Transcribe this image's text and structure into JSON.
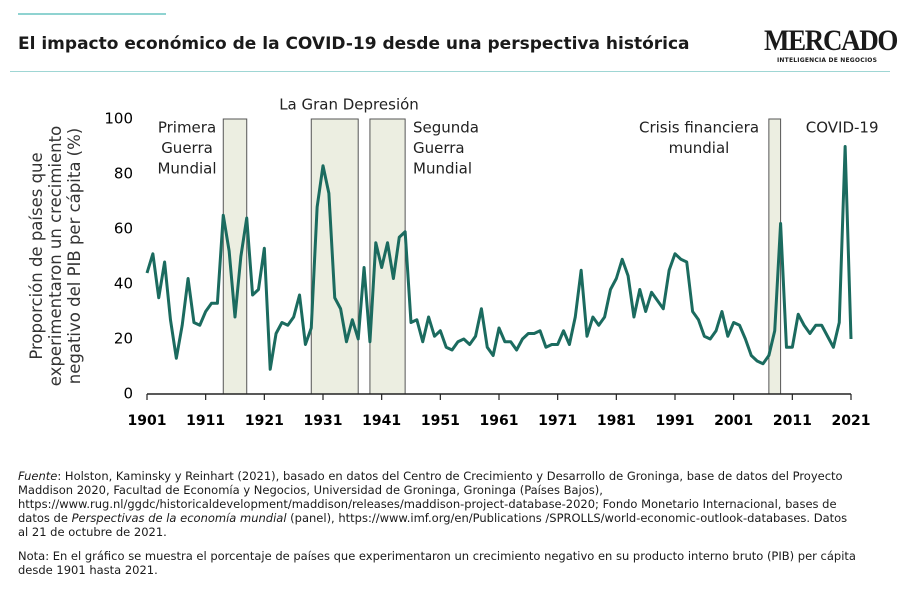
{
  "header": {
    "title": "El impacto económico de la COVID-19 desde una perspectiva histórica",
    "logo": "MERCADO",
    "logo_sub": "INTELIGENCIA DE NEGOCIOS"
  },
  "chart_data": {
    "type": "line",
    "ylabel": [
      "Proporción de países que",
      "experimentaron un crecimiento",
      "negativo del PIB per cápita (%)"
    ],
    "x": [
      1901,
      1902,
      1903,
      1904,
      1905,
      1906,
      1907,
      1908,
      1909,
      1910,
      1911,
      1912,
      1913,
      1914,
      1915,
      1916,
      1917,
      1918,
      1919,
      1920,
      1921,
      1922,
      1923,
      1924,
      1925,
      1926,
      1927,
      1928,
      1929,
      1930,
      1931,
      1932,
      1933,
      1934,
      1935,
      1936,
      1937,
      1938,
      1939,
      1940,
      1941,
      1942,
      1943,
      1944,
      1945,
      1946,
      1947,
      1948,
      1949,
      1950,
      1951,
      1952,
      1953,
      1954,
      1955,
      1956,
      1957,
      1958,
      1959,
      1960,
      1961,
      1962,
      1963,
      1964,
      1965,
      1966,
      1967,
      1968,
      1969,
      1970,
      1971,
      1972,
      1973,
      1974,
      1975,
      1976,
      1977,
      1978,
      1979,
      1980,
      1981,
      1982,
      1983,
      1984,
      1985,
      1986,
      1987,
      1988,
      1989,
      1990,
      1991,
      1992,
      1993,
      1994,
      1995,
      1996,
      1997,
      1998,
      1999,
      2000,
      2001,
      2002,
      2003,
      2004,
      2005,
      2006,
      2007,
      2008,
      2009,
      2010,
      2011,
      2012,
      2013,
      2014,
      2015,
      2016,
      2017,
      2018,
      2019,
      2020,
      2021
    ],
    "series": [
      {
        "color": "#1b6b5f",
        "values": [
          44,
          51,
          35,
          48,
          27,
          13,
          25,
          42,
          26,
          25,
          30,
          33,
          33,
          65,
          52,
          28,
          50,
          64,
          36,
          38,
          53,
          9,
          22,
          26,
          25,
          28,
          36,
          18,
          24,
          68,
          83,
          73,
          35,
          31,
          19,
          27,
          20,
          46,
          19,
          55,
          46,
          55,
          42,
          57,
          59,
          26,
          27,
          19,
          28,
          21,
          23,
          17,
          16,
          19,
          20,
          18,
          21,
          31,
          17,
          14,
          24,
          19,
          19,
          16,
          20,
          22,
          22,
          23,
          17,
          18,
          18,
          23,
          18,
          28,
          45,
          21,
          28,
          25,
          28,
          38,
          42,
          49,
          43,
          28,
          38,
          30,
          37,
          34,
          31,
          45,
          51,
          49,
          48,
          30,
          27,
          21,
          20,
          23,
          30,
          21,
          26,
          25,
          20,
          14,
          12,
          11,
          14,
          23,
          62,
          17,
          17,
          29,
          25,
          22,
          25,
          25,
          21,
          17,
          26,
          90,
          20
        ]
      }
    ],
    "xlim": [
      1901,
      2021
    ],
    "xticks": [
      1901,
      1911,
      1921,
      1931,
      1941,
      1951,
      1961,
      1971,
      1981,
      1991,
      2001,
      2011,
      2021
    ],
    "ylim": [
      0,
      100
    ],
    "yticks": [
      0,
      20,
      40,
      60,
      80,
      100
    ],
    "shaded_periods": [
      {
        "start": 1914,
        "end": 1918,
        "label": [
          "Primera",
          "Guerra",
          "Mundial"
        ]
      },
      {
        "start": 1929,
        "end": 1937,
        "label": [
          "La Gran Depresión"
        ]
      },
      {
        "start": 1939,
        "end": 1945,
        "label": [
          "Segunda",
          "Guerra",
          "Mundial"
        ]
      },
      {
        "start": 2007,
        "end": 2009,
        "label": [
          "Crisis financiera",
          "mundial"
        ]
      }
    ],
    "annotations": [
      {
        "x": 2020,
        "label": "COVID-19"
      }
    ]
  },
  "footnotes": [
    [
      {
        "text": "Fuente",
        "italic": true
      },
      {
        "text": ": Holston, Kaminsky y Reinhart (2021), basado en datos del Centro de Crecimiento y Desarrollo de Groninga, base de datos del Proyecto Maddison 2020, Facultad de Economía y Negocios, Universidad de Groninga, Groninga (Países Bajos), https://www.rug.nl/ggdc/historicaldevelopment/maddison/releases/maddison-project-database-2020; Fondo Monetario Internacional, bases de datos de "
      },
      {
        "text": "Perspectivas de la economía mundial",
        "italic": true
      },
      {
        "text": " (panel), https://www.imf.org/en/Publications /SPROLLS/world-economic-outlook-databases. Datos al 21 de octubre de 2021."
      }
    ],
    [
      {
        "text": "Nota: En el gráfico se muestra el porcentaje de países que experimentaron un crecimiento negativo en su producto interno bruto (PIB) per cápita desde 1901 hasta 2021."
      }
    ]
  ]
}
